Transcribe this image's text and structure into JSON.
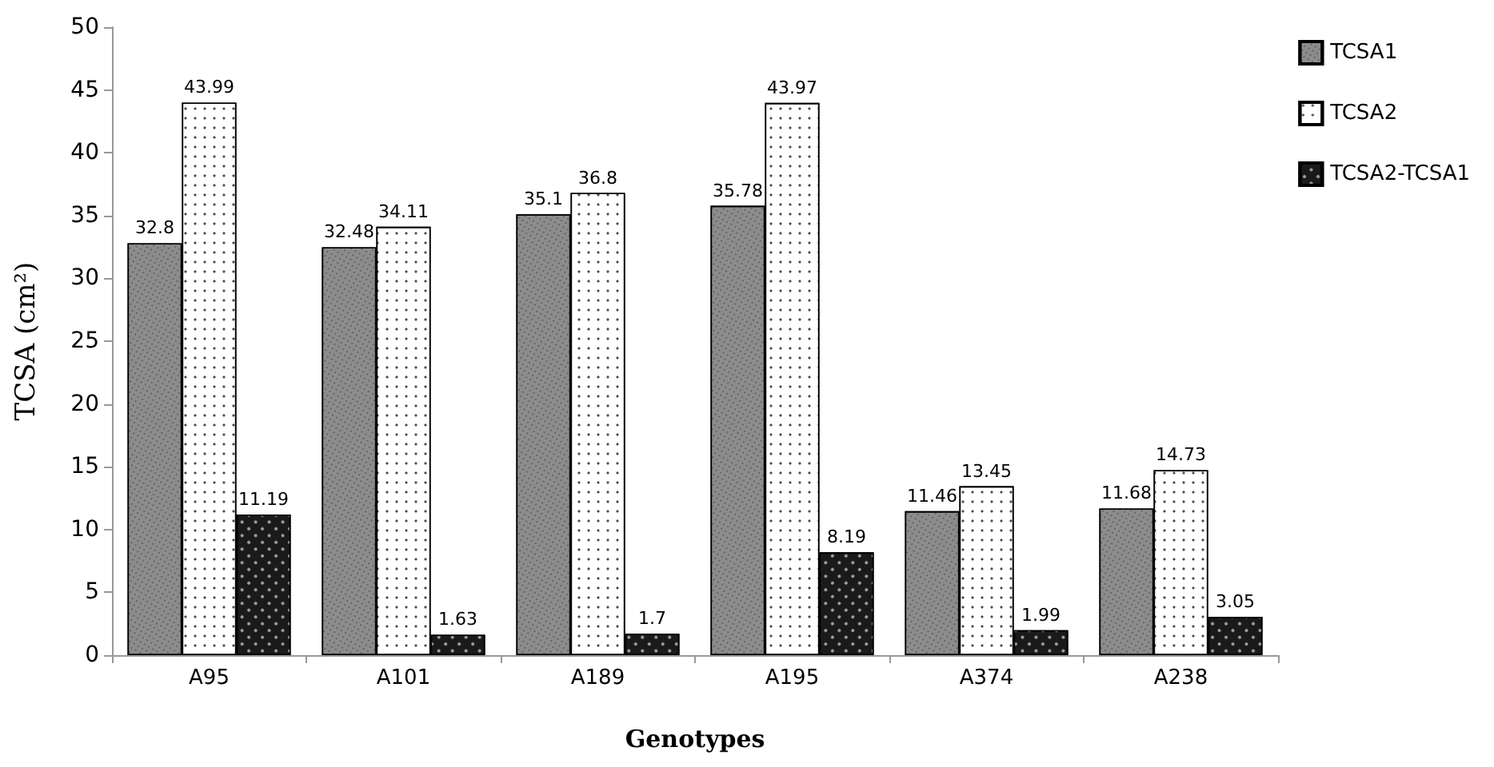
{
  "chart_data": {
    "type": "bar",
    "xlabel": "Genotypes",
    "ylabel": "TCSA (cm²)",
    "categories": [
      "A95",
      "A101",
      "A189",
      "A195",
      "A374",
      "A238"
    ],
    "series": [
      {
        "name": "TCSA1",
        "color": "#8c8c8c",
        "values": [
          32.8,
          32.48,
          35.1,
          35.78,
          11.46,
          11.68
        ]
      },
      {
        "name": "TCSA2",
        "color": "#ffffff",
        "values": [
          43.99,
          34.11,
          36.8,
          43.97,
          13.45,
          14.73
        ]
      },
      {
        "name": "TCSA2-TCSA1",
        "color": "#1a1a1a",
        "values": [
          11.19,
          1.63,
          1.7,
          8.19,
          1.99,
          3.05
        ]
      }
    ],
    "ylim": [
      0,
      50
    ],
    "yticks": [
      0,
      5,
      10,
      15,
      20,
      25,
      30,
      35,
      40,
      45,
      50
    ],
    "data_labels": true,
    "legend": "top right",
    "grid": false
  }
}
